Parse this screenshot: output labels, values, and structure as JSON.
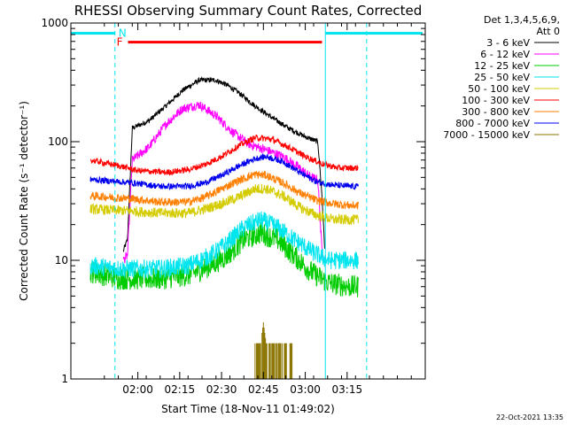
{
  "chart_data": {
    "type": "line",
    "title": "RHESSI Observing Summary Count Rates, Corrected",
    "xlabel": "Start Time (18-Nov-11 01:49:02)",
    "ylabel": "Corrected Count Rate (s⁻¹ detector⁻¹)",
    "yscale": "log",
    "ylim": [
      1,
      1000
    ],
    "xlim_min": [
      -12,
      115
    ],
    "xticks": [
      {
        "t": 12,
        "label": "02:00"
      },
      {
        "t": 27,
        "label": "02:15"
      },
      {
        "t": 42,
        "label": "02:30"
      },
      {
        "t": 57,
        "label": "02:45"
      },
      {
        "t": 72,
        "label": "03:00"
      },
      {
        "t": 87,
        "label": "03:15"
      }
    ],
    "yticks": [
      {
        "v": 1,
        "label": "1"
      },
      {
        "v": 10,
        "label": "10"
      },
      {
        "v": 100,
        "label": "100"
      },
      {
        "v": 1000,
        "label": "1000"
      }
    ],
    "legend_header": [
      "Det 1,3,4,5,6,9,",
      "Att 0"
    ],
    "legend_position": "right",
    "series": [
      {
        "name": "3 - 6 keV",
        "color": "#000000",
        "t": [
          6.8,
          8.3,
          10,
          16,
          22,
          28,
          34,
          40,
          44,
          48,
          54,
          60,
          66,
          72,
          76.5,
          78,
          79
        ],
        "values": [
          12,
          15,
          130,
          150,
          200,
          270,
          330,
          330,
          300,
          260,
          200,
          160,
          130,
          110,
          100,
          35,
          12
        ]
      },
      {
        "name": "6 - 12 keV",
        "color": "#ff00ff",
        "t": [
          6.8,
          8.3,
          10,
          16,
          22,
          28,
          34,
          40,
          46,
          52,
          58,
          64,
          70,
          74,
          76.5,
          78,
          79
        ],
        "values": [
          10,
          11,
          70,
          90,
          140,
          190,
          205,
          165,
          120,
          95,
          85,
          75,
          60,
          50,
          48,
          12,
          10
        ]
      },
      {
        "name": "12 - 25 keV",
        "color": "#00cc00",
        "t": [
          -5,
          6,
          8,
          10,
          20,
          30,
          38,
          44,
          50,
          56,
          62,
          68,
          74,
          80,
          88,
          91
        ],
        "values": [
          8,
          7,
          7,
          7,
          7,
          7.5,
          9,
          11,
          15,
          17,
          15,
          11,
          8,
          6.5,
          6,
          6
        ]
      },
      {
        "name": "25 - 50 keV",
        "color": "#00e5ee",
        "t": [
          -5,
          6,
          8,
          10,
          20,
          30,
          38,
          44,
          50,
          56,
          62,
          68,
          74,
          80,
          88,
          91
        ],
        "values": [
          9,
          8.5,
          8.5,
          8.5,
          8.5,
          9,
          11,
          14,
          19,
          22,
          19,
          15,
          12,
          10,
          10,
          10
        ]
      },
      {
        "name": "50 - 100 keV",
        "color": "#d4cc00",
        "t": [
          -5,
          10,
          20,
          30,
          36,
          42,
          48,
          54,
          58,
          64,
          70,
          76,
          82,
          88,
          91
        ],
        "values": [
          27,
          26,
          25,
          25,
          27,
          30,
          34,
          40,
          40,
          35,
          28,
          24,
          22,
          22,
          22
        ]
      },
      {
        "name": "100 - 300 keV",
        "color": "#ff0000",
        "t": [
          -5,
          6,
          12,
          22,
          30,
          36,
          42,
          48,
          54,
          60,
          66,
          72,
          78,
          84,
          91
        ],
        "values": [
          70,
          62,
          57,
          55,
          58,
          64,
          75,
          92,
          108,
          105,
          90,
          75,
          65,
          60,
          60
        ]
      },
      {
        "name": "300 - 800 keV",
        "color": "#ff7f00",
        "t": [
          -5,
          10,
          20,
          30,
          36,
          42,
          48,
          54,
          58,
          64,
          70,
          76,
          82,
          88,
          91
        ],
        "values": [
          35,
          33,
          31,
          31,
          34,
          40,
          47,
          53,
          52,
          45,
          37,
          32,
          30,
          29,
          29
        ]
      },
      {
        "name": "800 - 7000 keV",
        "color": "#0000ee",
        "t": [
          -5,
          10,
          20,
          30,
          36,
          42,
          48,
          54,
          58,
          64,
          70,
          76,
          82,
          88,
          91
        ],
        "values": [
          48,
          45,
          42,
          42,
          45,
          52,
          62,
          72,
          75,
          68,
          55,
          46,
          43,
          42,
          42
        ]
      },
      {
        "name": "7000 - 15000 keV",
        "color": "#8b7500",
        "t": [
          54,
          55,
          56,
          57,
          58,
          59,
          60,
          61,
          62,
          63,
          64,
          65,
          66,
          67,
          68
        ],
        "values": [
          2,
          2,
          2,
          3,
          2,
          2,
          2,
          2,
          2,
          2,
          2,
          2,
          2,
          2,
          2
        ]
      }
    ],
    "annotations": {
      "flag_labels": [
        "F",
        "N"
      ],
      "night_intervals": [
        [
          -12,
          3.8
        ],
        [
          79.2,
          114
        ]
      ],
      "flare_interval": [
        8.5,
        78
      ],
      "marker_lines_dashed": [
        3.8,
        94
      ],
      "marker_lines_solid": [
        79.2
      ]
    },
    "footer_date": "22-Oct-2021 13:35"
  }
}
